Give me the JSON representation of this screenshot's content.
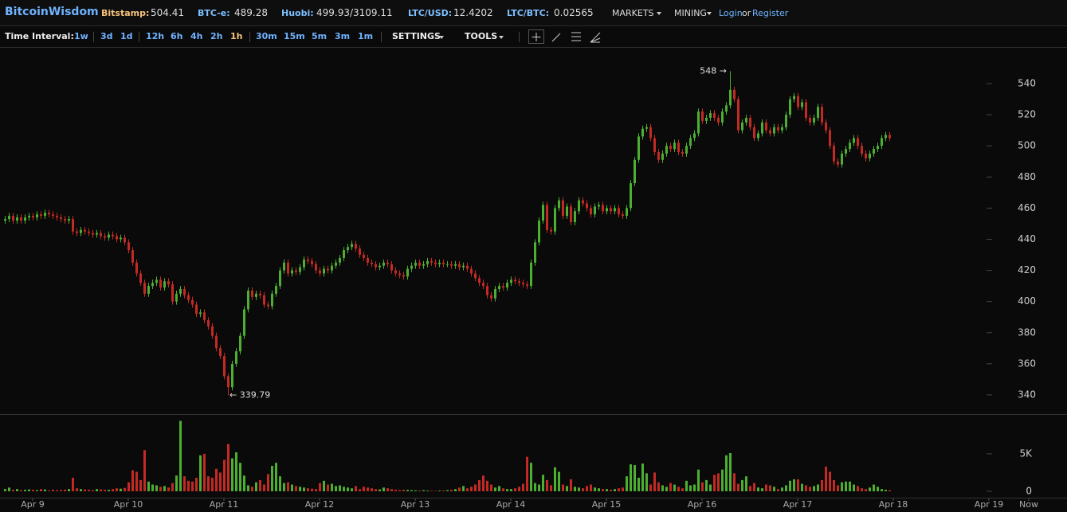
{
  "header": {
    "brand": "BitcoinWisdom",
    "tickers": [
      {
        "label": "Bitstamp:",
        "value": "504.41"
      },
      {
        "label": "BTC-e:",
        "value": "489.28"
      },
      {
        "label": "Huobi:",
        "value": "499.93/3109.11"
      },
      {
        "label": "LTC/USD:",
        "value": "12.4202"
      },
      {
        "label": "LTC/BTC:",
        "value": "0.02565"
      }
    ],
    "menus": [
      "MARKETS",
      "MINING"
    ],
    "login": "Login",
    "or": "or",
    "register": "Register"
  },
  "toolbar": {
    "label": "Time Interval:",
    "intervals": [
      "1w",
      "3d",
      "1d",
      "12h",
      "6h",
      "4h",
      "2h",
      "1h",
      "30m",
      "15m",
      "5m",
      "3m",
      "1m"
    ],
    "selected": "1h",
    "settings": "SETTINGS",
    "tools": "TOOLS"
  },
  "chart_data": {
    "type": "candlestick",
    "categories": [
      null,
      null,
      null,
      null,
      null,
      null,
      null,
      "Apr 9",
      null,
      null,
      null,
      null,
      null,
      null,
      null,
      null,
      null,
      null,
      null,
      null,
      null,
      null,
      null,
      null,
      null,
      null,
      null,
      null,
      null,
      null,
      null,
      "Apr 10",
      null,
      null,
      null,
      null,
      null,
      null,
      null,
      null,
      null,
      null,
      null,
      null,
      null,
      null,
      null,
      null,
      null,
      null,
      null,
      null,
      null,
      null,
      null,
      "Apr 11",
      null,
      null,
      null,
      null,
      null,
      null,
      null,
      null,
      null,
      null,
      null,
      null,
      null,
      null,
      null,
      null,
      null,
      null,
      null,
      null,
      null,
      null,
      null,
      "Apr 12",
      null,
      null,
      null,
      null,
      null,
      null,
      null,
      null,
      null,
      null,
      null,
      null,
      null,
      null,
      null,
      null,
      null,
      null,
      null,
      null,
      null,
      null,
      null,
      "Apr 13",
      null,
      null,
      null,
      null,
      null,
      null,
      null,
      null,
      null,
      null,
      null,
      null,
      null,
      null,
      null,
      null,
      null,
      null,
      null,
      null,
      null,
      null,
      null,
      "Apr 14",
      null,
      null,
      null,
      null,
      null,
      null,
      null,
      null,
      null,
      null,
      null,
      null,
      null,
      null,
      null,
      null,
      null,
      null,
      null,
      null,
      null,
      null,
      null,
      "Apr 15",
      null,
      null,
      null,
      null,
      null,
      null,
      null,
      null,
      null,
      null,
      null,
      null,
      null,
      null,
      null,
      null,
      null,
      null,
      null,
      null,
      null,
      null,
      null,
      "Apr 16",
      null,
      null,
      null,
      null,
      null,
      null,
      null,
      null,
      null,
      null,
      null,
      null,
      null,
      null,
      null,
      null,
      null,
      null,
      null,
      null,
      null,
      null,
      null,
      "Apr 17",
      null,
      null,
      null,
      null,
      null,
      null,
      null,
      null,
      null,
      null,
      null,
      null,
      null,
      null,
      null,
      null,
      null,
      null,
      null,
      null,
      null,
      null,
      null,
      "Apr 18",
      null,
      null,
      null,
      null,
      null,
      null,
      null,
      null,
      null,
      null,
      null,
      null,
      null,
      null,
      null,
      null,
      null,
      null,
      null,
      null,
      null,
      null,
      null,
      "Apr 19",
      null,
      null,
      null,
      null,
      null,
      null,
      null,
      null,
      null,
      "Now"
    ],
    "open": [
      452,
      453,
      455,
      452,
      454,
      452,
      454,
      455,
      454,
      456,
      455,
      457,
      456,
      455,
      454,
      453,
      452,
      453,
      445,
      444,
      446,
      445,
      444,
      443,
      444,
      442,
      441,
      443,
      442,
      440,
      441,
      438,
      433,
      425,
      418,
      412,
      405,
      410,
      412,
      414,
      409,
      413,
      411,
      400,
      405,
      408,
      404,
      401,
      398,
      392,
      393,
      388,
      384,
      378,
      370,
      365,
      352,
      345,
      360,
      368,
      378,
      395,
      407,
      403,
      405,
      404,
      398,
      397,
      405,
      410,
      420,
      425,
      418,
      420,
      419,
      422,
      427,
      426,
      424,
      420,
      418,
      421,
      420,
      423,
      425,
      428,
      433,
      435,
      437,
      434,
      430,
      428,
      425,
      424,
      422,
      423,
      425,
      424,
      420,
      418,
      417,
      416,
      421,
      423,
      425,
      423,
      424,
      426,
      425,
      424,
      425,
      424,
      424,
      423,
      424,
      422,
      423,
      421,
      418,
      415,
      412,
      410,
      404,
      402,
      408,
      410,
      409,
      412,
      414,
      413,
      412,
      411,
      410,
      425,
      438,
      452,
      462,
      446,
      445,
      460,
      465,
      455,
      461,
      451,
      458,
      465,
      463,
      460,
      456,
      461,
      462,
      458,
      460,
      458,
      460,
      456,
      455,
      460,
      476,
      491,
      506,
      511,
      512,
      505,
      496,
      491,
      495,
      500,
      498,
      502,
      496,
      495,
      500,
      505,
      508,
      522,
      516,
      518,
      521,
      518,
      515,
      522,
      526,
      536,
      530,
      510,
      515,
      518,
      512,
      505,
      508,
      515,
      510,
      508,
      512,
      510,
      512,
      520,
      530,
      532,
      525,
      528,
      518,
      515,
      518,
      525,
      515,
      510,
      500,
      490,
      488,
      495,
      498,
      502,
      505,
      500,
      495,
      492,
      495,
      498,
      500,
      505,
      507,
      null,
      null,
      null,
      null,
      null,
      null,
      null,
      null,
      null,
      null,
      null,
      null,
      null,
      null,
      null,
      null,
      null,
      null,
      null,
      null,
      null,
      null,
      null,
      null,
      null,
      null,
      null,
      null,
      null,
      null,
      null,
      null,
      null,
      null,
      null
    ],
    "high": [
      455,
      457,
      457,
      456,
      456,
      456,
      457,
      457,
      458,
      458,
      459,
      459,
      458,
      457,
      456,
      455,
      455,
      455,
      447,
      448,
      448,
      447,
      446,
      446,
      446,
      444,
      445,
      445,
      444,
      443,
      443,
      440,
      435,
      427,
      420,
      414,
      412,
      414,
      416,
      416,
      415,
      415,
      413,
      407,
      410,
      410,
      406,
      403,
      400,
      395,
      395,
      390,
      386,
      380,
      372,
      367,
      354,
      362,
      370,
      380,
      397,
      409,
      409,
      407,
      407,
      406,
      400,
      407,
      412,
      422,
      427,
      427,
      422,
      422,
      424,
      429,
      429,
      428,
      426,
      422,
      423,
      423,
      425,
      427,
      430,
      435,
      437,
      439,
      439,
      436,
      432,
      430,
      427,
      426,
      425,
      427,
      427,
      426,
      422,
      420,
      419,
      423,
      425,
      427,
      427,
      426,
      428,
      428,
      427,
      427,
      427,
      426,
      426,
      426,
      426,
      425,
      425,
      423,
      420,
      417,
      414,
      412,
      406,
      410,
      412,
      412,
      414,
      416,
      416,
      415,
      414,
      413,
      427,
      440,
      454,
      464,
      464,
      448,
      462,
      467,
      467,
      463,
      463,
      460,
      467,
      467,
      465,
      462,
      463,
      464,
      464,
      462,
      462,
      462,
      462,
      458,
      462,
      478,
      493,
      508,
      513,
      514,
      514,
      507,
      498,
      497,
      502,
      502,
      504,
      504,
      498,
      502,
      507,
      510,
      524,
      524,
      520,
      523,
      523,
      520,
      524,
      528,
      548,
      538,
      532,
      517,
      520,
      520,
      514,
      510,
      517,
      517,
      512,
      514,
      514,
      514,
      522,
      532,
      534,
      534,
      530,
      530,
      520,
      520,
      527,
      527,
      517,
      512,
      502,
      492,
      497,
      500,
      504,
      507,
      507,
      502,
      497,
      497,
      500,
      502,
      507,
      509,
      509,
      null,
      null,
      null,
      null,
      null,
      null,
      null,
      null,
      null,
      null,
      null,
      null,
      null,
      null,
      null,
      null,
      null,
      null,
      null,
      null,
      null,
      null,
      null,
      null,
      null,
      null,
      null,
      null,
      null,
      null,
      null,
      null,
      null,
      null,
      null
    ],
    "low": [
      450,
      451,
      450,
      450,
      450,
      450,
      452,
      452,
      452,
      453,
      453,
      454,
      453,
      452,
      451,
      450,
      450,
      443,
      442,
      442,
      443,
      442,
      441,
      441,
      440,
      439,
      439,
      440,
      438,
      438,
      436,
      431,
      423,
      416,
      410,
      403,
      403,
      408,
      410,
      407,
      407,
      409,
      398,
      398,
      403,
      402,
      399,
      396,
      390,
      390,
      386,
      382,
      376,
      368,
      363,
      350,
      339.79,
      343,
      358,
      366,
      376,
      393,
      401,
      401,
      402,
      396,
      395,
      395,
      403,
      408,
      418,
      416,
      416,
      417,
      417,
      420,
      424,
      422,
      418,
      416,
      416,
      418,
      418,
      421,
      423,
      426,
      431,
      433,
      432,
      428,
      426,
      423,
      422,
      420,
      420,
      421,
      422,
      418,
      416,
      415,
      414,
      414,
      419,
      421,
      421,
      421,
      422,
      423,
      422,
      422,
      422,
      422,
      421,
      421,
      420,
      420,
      419,
      416,
      413,
      410,
      408,
      402,
      400,
      400,
      406,
      407,
      407,
      410,
      411,
      410,
      409,
      408,
      408,
      423,
      436,
      450,
      444,
      443,
      443,
      458,
      453,
      453,
      449,
      449,
      456,
      461,
      458,
      454,
      454,
      459,
      456,
      456,
      456,
      456,
      454,
      453,
      453,
      458,
      474,
      489,
      504,
      509,
      503,
      494,
      489,
      489,
      493,
      496,
      496,
      494,
      493,
      493,
      498,
      503,
      506,
      514,
      514,
      516,
      516,
      513,
      513,
      520,
      524,
      528,
      508,
      508,
      513,
      510,
      503,
      503,
      506,
      508,
      506,
      506,
      508,
      508,
      510,
      518,
      528,
      523,
      523,
      516,
      513,
      513,
      516,
      513,
      508,
      498,
      488,
      486,
      486,
      493,
      496,
      500,
      498,
      493,
      490,
      490,
      493,
      496,
      498,
      503,
      503,
      null,
      null,
      null,
      null,
      null,
      null,
      null,
      null,
      null,
      null,
      null,
      null,
      null,
      null,
      null,
      null,
      null,
      null,
      null,
      null,
      null,
      null,
      null,
      null,
      null,
      null,
      null,
      null,
      null,
      null,
      null,
      null,
      null,
      null,
      null
    ],
    "close": [
      453,
      455,
      452,
      454,
      452,
      454,
      455,
      454,
      456,
      455,
      457,
      456,
      455,
      454,
      453,
      452,
      453,
      445,
      444,
      446,
      445,
      444,
      443,
      444,
      442,
      441,
      443,
      442,
      440,
      441,
      438,
      433,
      425,
      418,
      412,
      405,
      410,
      412,
      414,
      409,
      413,
      411,
      400,
      405,
      408,
      404,
      401,
      398,
      392,
      393,
      388,
      384,
      378,
      370,
      365,
      352,
      345,
      360,
      368,
      378,
      395,
      407,
      403,
      405,
      404,
      398,
      397,
      405,
      410,
      420,
      425,
      418,
      420,
      419,
      422,
      427,
      426,
      424,
      420,
      418,
      421,
      420,
      423,
      425,
      428,
      433,
      435,
      437,
      434,
      430,
      428,
      425,
      424,
      422,
      423,
      425,
      424,
      420,
      418,
      417,
      416,
      421,
      423,
      425,
      423,
      424,
      426,
      425,
      424,
      425,
      424,
      424,
      423,
      424,
      422,
      423,
      421,
      418,
      415,
      412,
      410,
      404,
      402,
      408,
      410,
      409,
      412,
      414,
      413,
      412,
      411,
      410,
      425,
      438,
      452,
      462,
      446,
      445,
      460,
      465,
      455,
      461,
      451,
      458,
      465,
      463,
      460,
      456,
      461,
      462,
      458,
      460,
      458,
      460,
      456,
      455,
      460,
      476,
      491,
      506,
      511,
      512,
      505,
      496,
      491,
      495,
      500,
      498,
      502,
      496,
      495,
      500,
      505,
      508,
      522,
      516,
      518,
      521,
      518,
      515,
      522,
      526,
      536,
      530,
      510,
      515,
      518,
      512,
      505,
      508,
      515,
      510,
      508,
      512,
      510,
      512,
      520,
      530,
      532,
      525,
      528,
      518,
      515,
      518,
      525,
      515,
      510,
      500,
      490,
      488,
      495,
      498,
      502,
      505,
      500,
      495,
      492,
      495,
      498,
      500,
      505,
      507,
      505,
      null,
      null,
      null,
      null,
      null,
      null,
      null,
      null,
      null,
      null,
      null,
      null,
      null,
      null,
      null,
      null,
      null,
      null,
      null,
      null,
      null,
      null,
      null,
      null,
      null,
      null,
      null,
      null,
      null,
      null,
      null,
      null,
      null,
      null,
      null
    ],
    "volume": [
      300,
      500,
      200,
      300,
      150,
      200,
      250,
      200,
      150,
      300,
      250,
      100,
      200,
      150,
      180,
      220,
      300,
      1800,
      400,
      300,
      250,
      200,
      150,
      300,
      250,
      200,
      200,
      300,
      400,
      350,
      450,
      1200,
      2800,
      2600,
      1500,
      5500,
      1300,
      900,
      800,
      600,
      700,
      500,
      1100,
      2100,
      9400,
      2000,
      1400,
      1300,
      1800,
      4800,
      5000,
      2000,
      1800,
      3000,
      2500,
      4200,
      6300,
      4400,
      5200,
      3800,
      2100,
      800,
      600,
      1200,
      1500,
      900,
      2300,
      3400,
      3800,
      2000,
      1100,
      1200,
      900,
      700,
      600,
      500,
      400,
      350,
      300,
      1100,
      1400,
      900,
      1000,
      700,
      800,
      600,
      500,
      400,
      700,
      300,
      600,
      500,
      400,
      300,
      250,
      500,
      400,
      300,
      200,
      150,
      200,
      180,
      150,
      120,
      100,
      150,
      100,
      80,
      60,
      100,
      120,
      150,
      200,
      300,
      500,
      700,
      400,
      600,
      900,
      1500,
      2100,
      1400,
      900,
      500,
      700,
      400,
      300,
      300,
      400,
      600,
      1000,
      4600,
      3800,
      1100,
      900,
      2200,
      1500,
      800,
      3200,
      2600,
      900,
      700,
      1600,
      600,
      500,
      400,
      700,
      900,
      500,
      400,
      300,
      300,
      200,
      300,
      400,
      500,
      2000,
      3600,
      3500,
      1800,
      3700,
      2400,
      900,
      2500,
      1200,
      800,
      600,
      1100,
      900,
      600,
      400,
      1400,
      800,
      900,
      2900,
      1200,
      1500,
      900,
      2200,
      2400,
      2900,
      4800,
      5100,
      2400,
      1000,
      1500,
      2000,
      700,
      1100,
      500,
      400,
      900,
      800,
      600,
      300,
      500,
      800,
      1400,
      1600,
      1600,
      1000,
      800,
      600,
      700,
      900,
      1500,
      3300,
      2600,
      1500,
      800,
      1200,
      1300,
      1300,
      900,
      700,
      400,
      300,
      500,
      900,
      600,
      300,
      200,
      150,
      null,
      null,
      null,
      null,
      null,
      null,
      null,
      null,
      null,
      null,
      null,
      null,
      null,
      null,
      null,
      null,
      null,
      null,
      null,
      null,
      null,
      null,
      null,
      null,
      null,
      null,
      null,
      null,
      null,
      null,
      null,
      null,
      null,
      null,
      null
    ],
    "colors": {
      "up": "#4caf32",
      "down": "#c42a24"
    },
    "ylim": [
      327.7,
      563
    ],
    "yticks": [
      340,
      360,
      380,
      400,
      420,
      440,
      460,
      480,
      500,
      520,
      540
    ],
    "vlim": [
      0,
      10200
    ],
    "vticks": [
      0,
      {
        "value": 5000,
        "label": "5K"
      }
    ],
    "max_label": "548 →",
    "min_label": "← 339.79"
  }
}
